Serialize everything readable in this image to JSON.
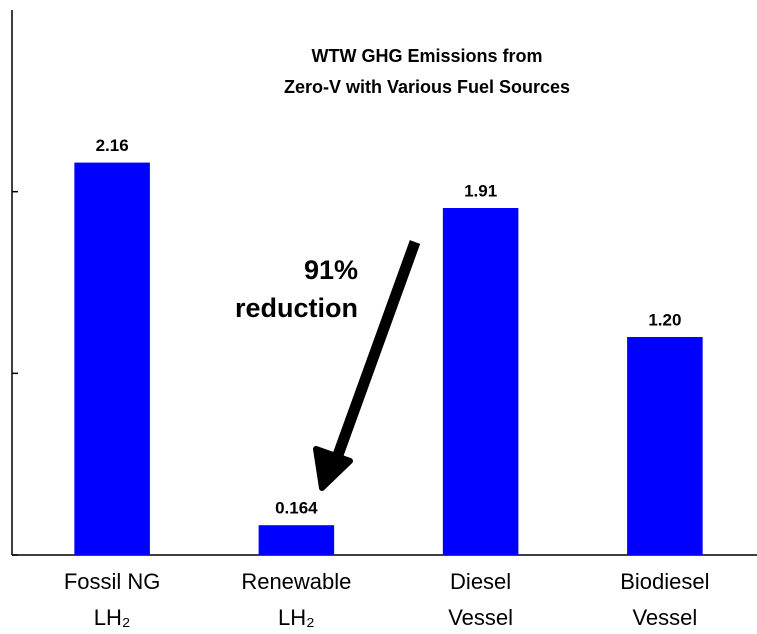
{
  "chart_data": {
    "type": "bar",
    "title": [
      "WTW GHG Emissions from",
      "Zero-V with Various Fuel Sources"
    ],
    "categories": [
      [
        "Fossil NG",
        "LH₂"
      ],
      [
        "Renewable",
        "LH₂"
      ],
      [
        "Diesel",
        "Vessel"
      ],
      [
        "Biodiesel",
        "Vessel"
      ]
    ],
    "values": [
      2.16,
      0.164,
      1.91,
      1.2
    ],
    "value_labels": [
      "2.16",
      "0.164",
      "1.91",
      "1.20"
    ],
    "color": "#0000ff",
    "ylim": [
      0,
      3
    ],
    "yticks": [
      0,
      1,
      2
    ],
    "annotation": [
      "91%",
      "reduction"
    ]
  }
}
